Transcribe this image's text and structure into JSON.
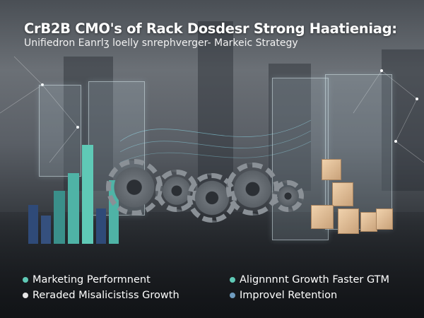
{
  "title": "CrB2B CMO's of Rack Dosdesr Strong Haatieniag:",
  "subtitle": "Unifiedron Eanrlʒ loelly snrephverger- Markeic Strategy",
  "bullets_left": [
    {
      "label": "Marketing Performnent",
      "color": "#5fc9b6"
    },
    {
      "label": "Reraded Misalicistiss Growth",
      "color": "#e6e6e6"
    }
  ],
  "bullets_right": [
    {
      "label": "Alignnnnt Growth Faster GTM",
      "color": "#5fc9b6"
    },
    {
      "label": "Improvel Retention",
      "color": "#6f9cc0"
    }
  ],
  "colors": {
    "teal": "#4fb3a6",
    "navy": "#2f4a78",
    "box": "#e2bf96"
  },
  "icons": [
    "wifi-icon",
    "checkmark-icon",
    "gear-icon",
    "box-icon",
    "network-icon"
  ]
}
